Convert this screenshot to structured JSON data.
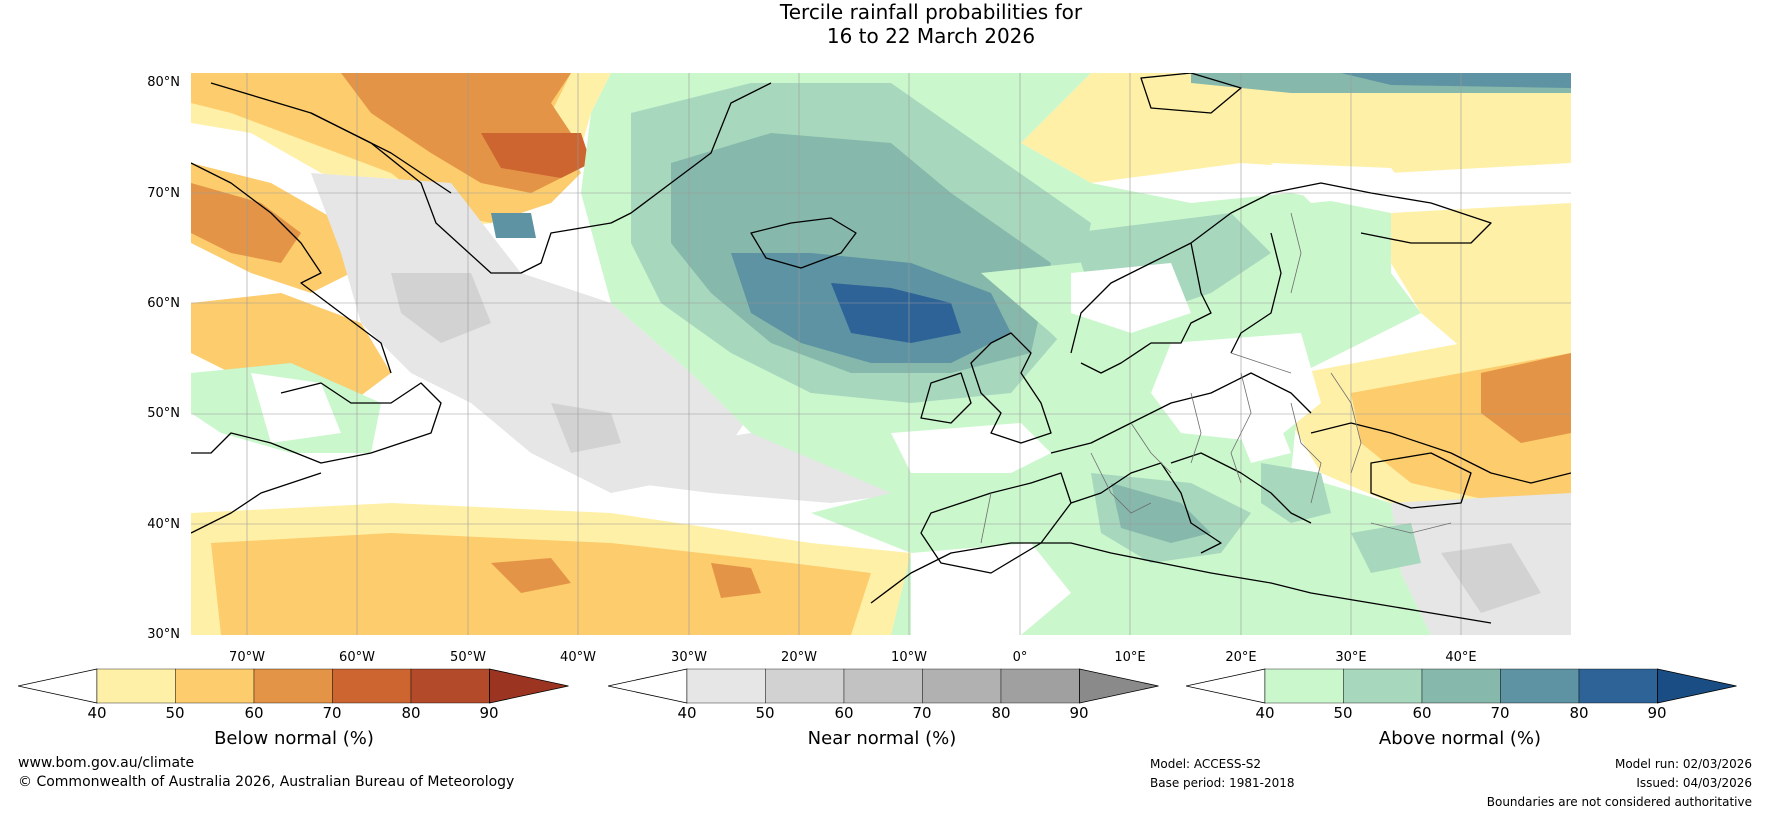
{
  "title": {
    "line1": "Tercile rainfall probabilities for",
    "line2": "16 to 22 March 2026"
  },
  "map": {
    "lat_labels": [
      "80°N",
      "70°N",
      "60°N",
      "50°N",
      "40°N",
      "30°N"
    ],
    "lon_labels": [
      "70°W",
      "60°W",
      "50°W",
      "40°W",
      "30°W",
      "20°W",
      "10°W",
      "0°",
      "10°E",
      "20°E",
      "30°E",
      "40°E"
    ],
    "lon_range": [
      -75,
      50
    ],
    "lat_range": [
      30,
      80.8
    ]
  },
  "colorbars": [
    {
      "label": "Below normal (%)",
      "ticks": [
        "40",
        "50",
        "60",
        "70",
        "80",
        "90"
      ],
      "colors": [
        "#ffffff",
        "#fff0a8",
        "#fdcc6c",
        "#e39446",
        "#cc6530",
        "#b34a2a",
        "#9c3422"
      ]
    },
    {
      "label": "Near normal (%)",
      "ticks": [
        "40",
        "50",
        "60",
        "70",
        "80",
        "90"
      ],
      "colors": [
        "#ffffff",
        "#e6e6e6",
        "#d2d2d2",
        "#c2c2c2",
        "#b1b1b1",
        "#a0a0a0",
        "#8a8a8a"
      ]
    },
    {
      "label": "Above normal (%)",
      "ticks": [
        "40",
        "50",
        "60",
        "70",
        "80",
        "90"
      ],
      "colors": [
        "#ffffff",
        "#caf7cc",
        "#a7d8bd",
        "#86b9ab",
        "#5d93a3",
        "#2e6397",
        "#1a4d83"
      ]
    }
  ],
  "footer": {
    "website": "www.bom.gov.au/climate",
    "copyright": "© Commonwealth of Australia 2026, Australian Bureau of Meteorology",
    "model": "Model: ACCESS-S2",
    "base_period": "Base period: 1981-2018",
    "model_run": "Model run: 02/03/2026",
    "issued": "Issued: 04/03/2026",
    "disclaimer": "Boundaries are not considered authoritative"
  }
}
